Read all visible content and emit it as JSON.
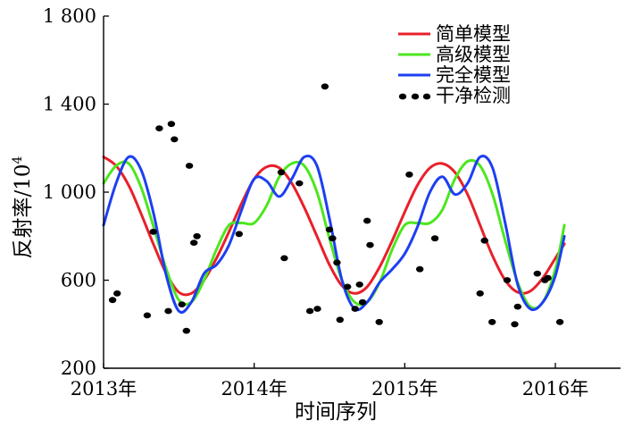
{
  "chart_data": {
    "type": "line",
    "title": "",
    "xlabel": "时间序列",
    "ylabel": "反射率/10⁴",
    "ylabel_main": "反射率/10",
    "ylabel_sup": "4",
    "xlim": [
      2013.0,
      2016.5
    ],
    "ylim": [
      200,
      1800
    ],
    "x_ticks": [
      2013,
      2014,
      2015,
      2016
    ],
    "x_tick_labels": [
      "2013年",
      "2014年",
      "2015年",
      "2016年"
    ],
    "y_ticks": [
      200,
      600,
      1000,
      1400,
      1800
    ],
    "y_tick_labels": [
      "200",
      "600",
      "1 000",
      "1 400",
      "1 800"
    ],
    "grid": false,
    "legend_position": "top-right",
    "series": [
      {
        "name": "简单模型",
        "kind": "line",
        "color": "#e8202a",
        "x": [
          2013.0,
          2013.083,
          2013.167,
          2013.25,
          2013.333,
          2013.417,
          2013.5,
          2013.583,
          2013.667,
          2013.75,
          2013.833,
          2013.917,
          2014.0,
          2014.083,
          2014.167,
          2014.25,
          2014.333,
          2014.417,
          2014.5,
          2014.583,
          2014.667,
          2014.75,
          2014.833,
          2014.917,
          2015.0,
          2015.083,
          2015.167,
          2015.25,
          2015.333,
          2015.417,
          2015.5,
          2015.583,
          2015.667,
          2015.75,
          2015.833,
          2015.917,
          2016.0,
          2016.06
        ],
        "y": [
          1160,
          1120,
          1030,
          900,
          760,
          630,
          545,
          540,
          600,
          700,
          820,
          950,
          1060,
          1115,
          1110,
          1040,
          930,
          800,
          670,
          575,
          540,
          570,
          660,
          780,
          910,
          1030,
          1110,
          1130,
          1090,
          990,
          850,
          710,
          600,
          545,
          550,
          610,
          700,
          765
        ]
      },
      {
        "name": "高级模型",
        "kind": "line",
        "color": "#4de61e",
        "x": [
          2013.0,
          2013.083,
          2013.167,
          2013.25,
          2013.333,
          2013.417,
          2013.5,
          2013.583,
          2013.667,
          2013.75,
          2013.833,
          2013.917,
          2014.0,
          2014.083,
          2014.167,
          2014.25,
          2014.333,
          2014.417,
          2014.5,
          2014.583,
          2014.667,
          2014.75,
          2014.833,
          2014.917,
          2015.0,
          2015.083,
          2015.167,
          2015.25,
          2015.333,
          2015.417,
          2015.5,
          2015.583,
          2015.667,
          2015.75,
          2015.833,
          2015.917,
          2016.0,
          2016.06
        ],
        "y": [
          1040,
          1120,
          1130,
          1020,
          840,
          650,
          510,
          500,
          600,
          740,
          850,
          860,
          860,
          940,
          1070,
          1130,
          1120,
          1000,
          790,
          600,
          500,
          500,
          590,
          740,
          850,
          860,
          860,
          920,
          1060,
          1140,
          1120,
          990,
          780,
          590,
          480,
          500,
          650,
          850
        ]
      },
      {
        "name": "完全模型",
        "kind": "line",
        "color": "#1d3ff2",
        "x": [
          2013.0,
          2013.083,
          2013.167,
          2013.25,
          2013.333,
          2013.417,
          2013.5,
          2013.583,
          2013.667,
          2013.75,
          2013.833,
          2013.917,
          2014.0,
          2014.083,
          2014.167,
          2014.25,
          2014.333,
          2014.417,
          2014.5,
          2014.583,
          2014.667,
          2014.75,
          2014.833,
          2014.917,
          2015.0,
          2015.083,
          2015.167,
          2015.25,
          2015.333,
          2015.417,
          2015.5,
          2015.583,
          2015.667,
          2015.75,
          2015.833,
          2015.917,
          2016.0,
          2016.06
        ],
        "y": [
          850,
          1040,
          1160,
          1100,
          900,
          620,
          460,
          500,
          630,
          670,
          760,
          920,
          1060,
          1050,
          980,
          1060,
          1160,
          1120,
          880,
          600,
          470,
          500,
          590,
          650,
          720,
          840,
          1000,
          1070,
          990,
          1040,
          1160,
          1110,
          860,
          580,
          470,
          500,
          620,
          800
        ]
      },
      {
        "name": "干净检测",
        "kind": "scatter",
        "color": "#000000",
        "x": [
          2013.06,
          2013.09,
          2013.29,
          2013.33,
          2013.37,
          2013.43,
          2013.45,
          2013.47,
          2013.52,
          2013.55,
          2013.57,
          2013.6,
          2013.62,
          2013.9,
          2014.18,
          2014.2,
          2014.3,
          2014.37,
          2014.42,
          2014.47,
          2014.5,
          2014.52,
          2014.55,
          2014.57,
          2014.62,
          2014.67,
          2014.7,
          2014.72,
          2014.75,
          2014.77,
          2014.83,
          2015.03,
          2015.1,
          2015.2,
          2015.5,
          2015.53,
          2015.58,
          2015.68,
          2015.73,
          2015.75,
          2015.88,
          2015.93,
          2015.95,
          2016.03
        ],
        "y": [
          510,
          540,
          440,
          820,
          1290,
          460,
          1310,
          1240,
          490,
          370,
          1120,
          770,
          800,
          810,
          1090,
          700,
          1040,
          460,
          470,
          1480,
          830,
          790,
          680,
          420,
          570,
          470,
          580,
          500,
          870,
          760,
          410,
          1080,
          650,
          790,
          540,
          780,
          410,
          600,
          400,
          480,
          630,
          600,
          610,
          410
        ]
      }
    ]
  }
}
